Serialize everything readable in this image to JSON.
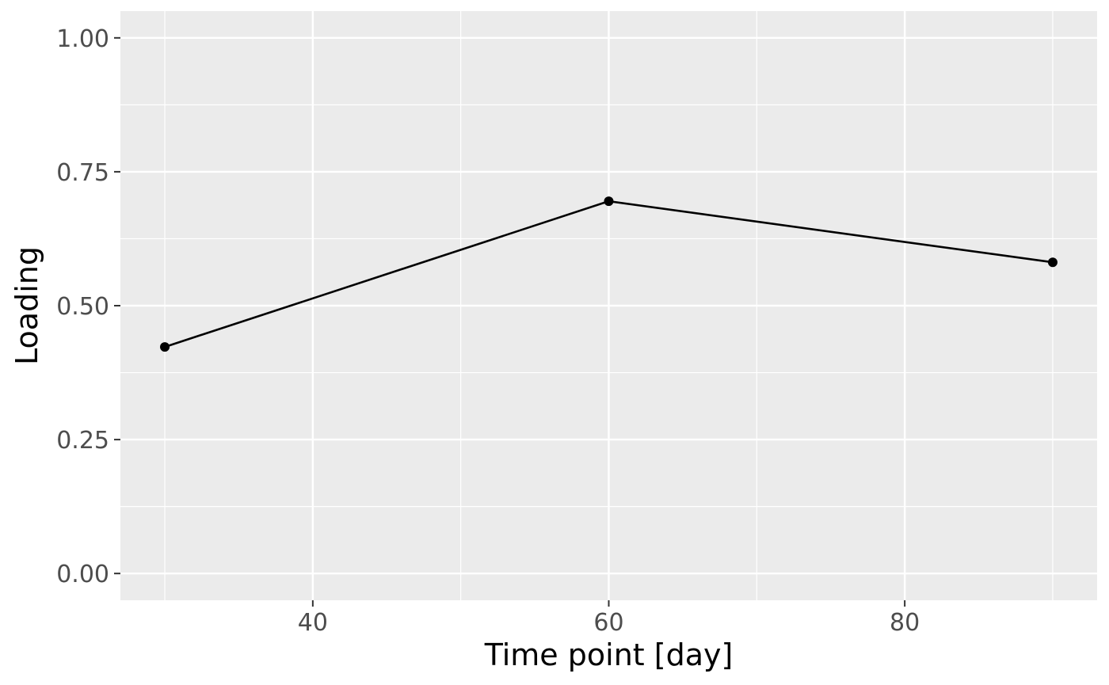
{
  "chart_data": {
    "type": "line",
    "title": "",
    "xlabel": "Time point [day]",
    "ylabel": "Loading",
    "xlim": [
      27,
      93
    ],
    "ylim": [
      -0.05,
      1.05
    ],
    "x_ticks": [
      40,
      60,
      80
    ],
    "x_tick_labels": [
      "40",
      "60",
      "80"
    ],
    "x_minor_ticks": [
      30,
      50,
      70,
      90
    ],
    "y_ticks": [
      0,
      0.25,
      0.5,
      0.75,
      1
    ],
    "y_tick_labels": [
      "0.00",
      "0.25",
      "0.50",
      "0.75",
      "1.00"
    ],
    "y_minor_ticks": [
      0.125,
      0.375,
      0.625,
      0.875
    ],
    "grid": true,
    "legend": "none",
    "series": [
      {
        "x": [
          30,
          60,
          90
        ],
        "y": [
          0.423,
          0.695,
          0.581
        ]
      }
    ]
  },
  "colors": {
    "panel_background": "#ebebeb",
    "grid": "#ffffff",
    "line": "#000000",
    "point": "#000000",
    "tick_label": "#4d4d4d",
    "axis_title": "#000000"
  }
}
